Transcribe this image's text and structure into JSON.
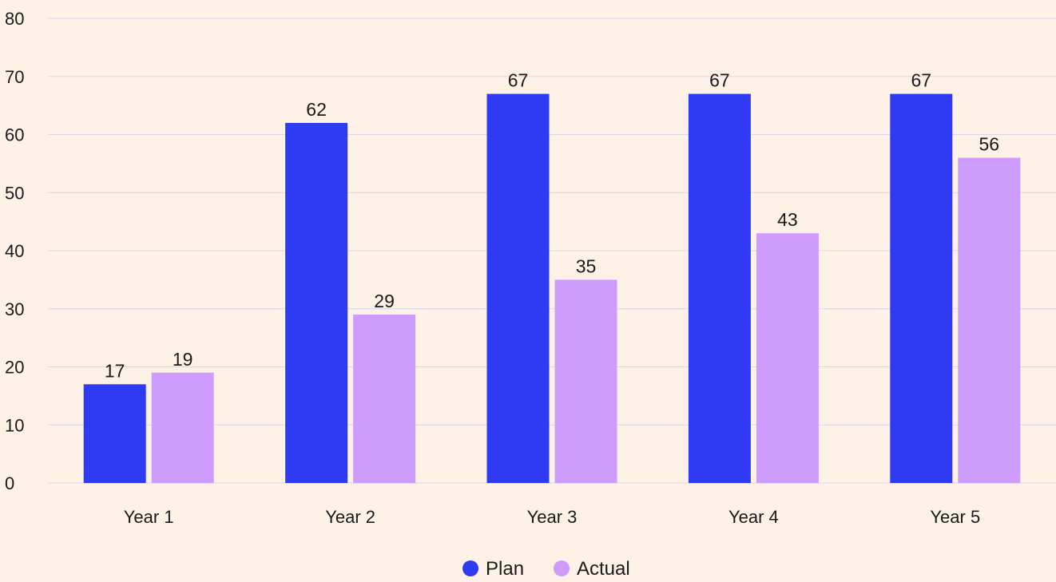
{
  "chart_data": {
    "type": "bar",
    "title": "",
    "xlabel": "",
    "ylabel": "",
    "categories": [
      "Year 1",
      "Year 2",
      "Year 3",
      "Year 4",
      "Year 5"
    ],
    "series": [
      {
        "name": "Plan",
        "color": "#2F3BF2",
        "values": [
          17,
          62,
          67,
          67,
          67
        ]
      },
      {
        "name": "Actual",
        "color": "#CE9CFD",
        "values": [
          19,
          29,
          35,
          43,
          56
        ]
      }
    ],
    "ylim": [
      0,
      80
    ],
    "yticks": [
      "0",
      "10",
      "20",
      "30",
      "40",
      "50",
      "60",
      "70",
      "80"
    ],
    "grid": true,
    "legend_position": "bottom-center",
    "background_color": "#FEF2E6",
    "gridline_color": "#D8D6EF"
  }
}
